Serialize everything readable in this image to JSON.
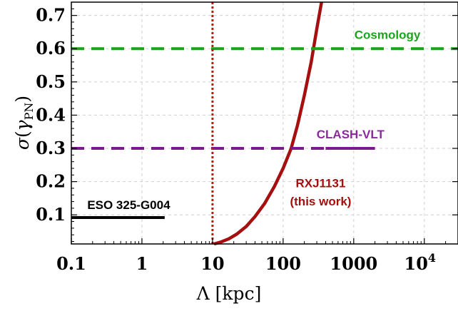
{
  "chart_data": {
    "type": "line",
    "title": "",
    "xlabel": "Λ [kpc]",
    "ylabel": "σ(γ_PN)",
    "xscale": "log",
    "xlim": [
      0.1,
      30000
    ],
    "ylim": [
      0.0125,
      0.74
    ],
    "grid": true,
    "x_tick_labels": [
      "0.1",
      "1",
      "10",
      "100",
      "1000",
      "10^4"
    ],
    "x_ticks": [
      0.1,
      1,
      10,
      100,
      1000,
      10000
    ],
    "y_ticks": [
      0.1,
      0.2,
      0.3,
      0.4,
      0.5,
      0.6,
      0.7
    ],
    "y_tick_labels": [
      "0.1",
      "0.2",
      "0.3",
      "0.4",
      "0.5",
      "0.6",
      "0.7"
    ],
    "series": [
      {
        "name": "RXJ1131 (this work)",
        "color": "#a50f0f",
        "style": "solid",
        "x": [
          10.5,
          13,
          17,
          22,
          30,
          40,
          55,
          75,
          100,
          130,
          160,
          200,
          250,
          300,
          350
        ],
        "y": [
          0.0125,
          0.018,
          0.028,
          0.042,
          0.065,
          0.095,
          0.135,
          0.185,
          0.24,
          0.3,
          0.37,
          0.46,
          0.56,
          0.66,
          0.74
        ]
      },
      {
        "name": "Cosmology",
        "color": "#1aa41a",
        "style": "dashed",
        "x": [
          0.1,
          30000
        ],
        "y": [
          0.6,
          0.6
        ]
      },
      {
        "name": "CLASH-VLT",
        "color": "#7b1a8c",
        "style": "dashed-then-solid",
        "x": [
          0.1,
          400,
          2000
        ],
        "y": [
          0.3,
          0.3,
          0.3
        ]
      },
      {
        "name": "ESO 325-G004",
        "color": "#000000",
        "style": "solid",
        "x": [
          0.1,
          2.1
        ],
        "y": [
          0.092,
          0.092
        ]
      },
      {
        "name": "",
        "color": "#c81414",
        "style": "dotted-vertical",
        "x": [
          10,
          10
        ],
        "y": [
          0.0125,
          0.74
        ]
      }
    ],
    "annotations": [
      {
        "text": "Cosmology",
        "x": 3000,
        "y": 0.63,
        "color": "#1aa41a"
      },
      {
        "text": "CLASH-VLT",
        "x": 900,
        "y": 0.33,
        "color": "#8b2a9c"
      },
      {
        "text": "ESO 325-G004",
        "x": 0.65,
        "y": 0.118,
        "color": "#000000"
      },
      {
        "text": "RXJ1131",
        "x": 340,
        "y": 0.183,
        "color": "#a50f0f"
      },
      {
        "text": "(this work)",
        "x": 340,
        "y": 0.128,
        "color": "#a50f0f"
      }
    ]
  }
}
